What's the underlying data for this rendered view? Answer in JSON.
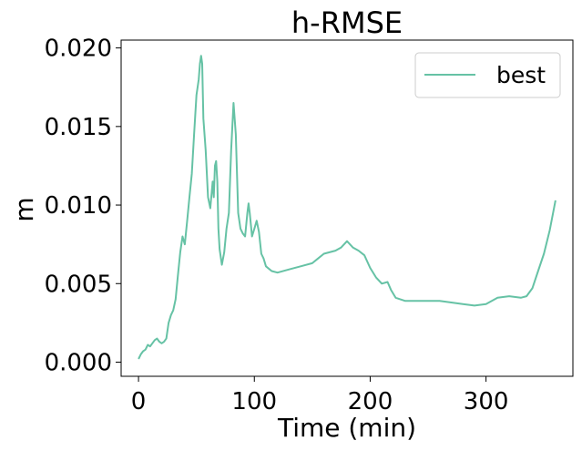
{
  "chart_data": {
    "type": "line",
    "title": "h-RMSE",
    "xlabel": "Time (min)",
    "ylabel": "m",
    "xlim": [
      -15,
      375
    ],
    "ylim": [
      -0.0009,
      0.0205
    ],
    "xticks": [
      0,
      100,
      200,
      300
    ],
    "xtick_labels": [
      "0",
      "100",
      "200",
      "300"
    ],
    "yticks": [
      0.0,
      0.005,
      0.01,
      0.015,
      0.02
    ],
    "ytick_labels": [
      "0.000",
      "0.005",
      "0.010",
      "0.015",
      "0.020"
    ],
    "grid": false,
    "legend_position": "top-right",
    "series": [
      {
        "name": "best",
        "color": "#66c2a5",
        "x": [
          0,
          2,
          4,
          6,
          8,
          10,
          12,
          14,
          16,
          18,
          20,
          22,
          24,
          26,
          28,
          30,
          32,
          34,
          36,
          38,
          40,
          42,
          44,
          46,
          48,
          50,
          52,
          53,
          54,
          55,
          56,
          58,
          60,
          62,
          64,
          65,
          66,
          67,
          68,
          69,
          70,
          72,
          74,
          76,
          78,
          80,
          82,
          84,
          85,
          86,
          88,
          90,
          92,
          94,
          95,
          96,
          98,
          100,
          102,
          104,
          106,
          108,
          110,
          115,
          120,
          130,
          140,
          150,
          155,
          160,
          170,
          175,
          180,
          185,
          190,
          195,
          200,
          205,
          210,
          215,
          218,
          222,
          230,
          240,
          250,
          260,
          270,
          280,
          290,
          300,
          310,
          320,
          330,
          335,
          340,
          345,
          350,
          355,
          360
        ],
        "y": [
          0.0002,
          0.0005,
          0.0007,
          0.0008,
          0.0011,
          0.001,
          0.0012,
          0.0014,
          0.0015,
          0.0013,
          0.0012,
          0.0013,
          0.0015,
          0.0025,
          0.003,
          0.0033,
          0.004,
          0.0055,
          0.007,
          0.008,
          0.0075,
          0.009,
          0.0105,
          0.012,
          0.0145,
          0.017,
          0.018,
          0.019,
          0.0195,
          0.019,
          0.0155,
          0.0135,
          0.0105,
          0.0098,
          0.0115,
          0.0105,
          0.0125,
          0.0128,
          0.0115,
          0.0085,
          0.0072,
          0.0062,
          0.007,
          0.0085,
          0.0095,
          0.0135,
          0.0165,
          0.0145,
          0.012,
          0.0095,
          0.0085,
          0.0082,
          0.008,
          0.0095,
          0.0101,
          0.0095,
          0.008,
          0.0085,
          0.009,
          0.0083,
          0.0069,
          0.0066,
          0.0061,
          0.0058,
          0.0057,
          0.0059,
          0.0061,
          0.0063,
          0.0066,
          0.0069,
          0.0071,
          0.0073,
          0.0077,
          0.0073,
          0.0071,
          0.0068,
          0.006,
          0.0054,
          0.005,
          0.0051,
          0.0046,
          0.0041,
          0.0039,
          0.0039,
          0.0039,
          0.0039,
          0.0038,
          0.0037,
          0.0036,
          0.0037,
          0.0041,
          0.0042,
          0.0041,
          0.0042,
          0.0047,
          0.0058,
          0.0069,
          0.0084,
          0.0103
        ]
      }
    ]
  }
}
